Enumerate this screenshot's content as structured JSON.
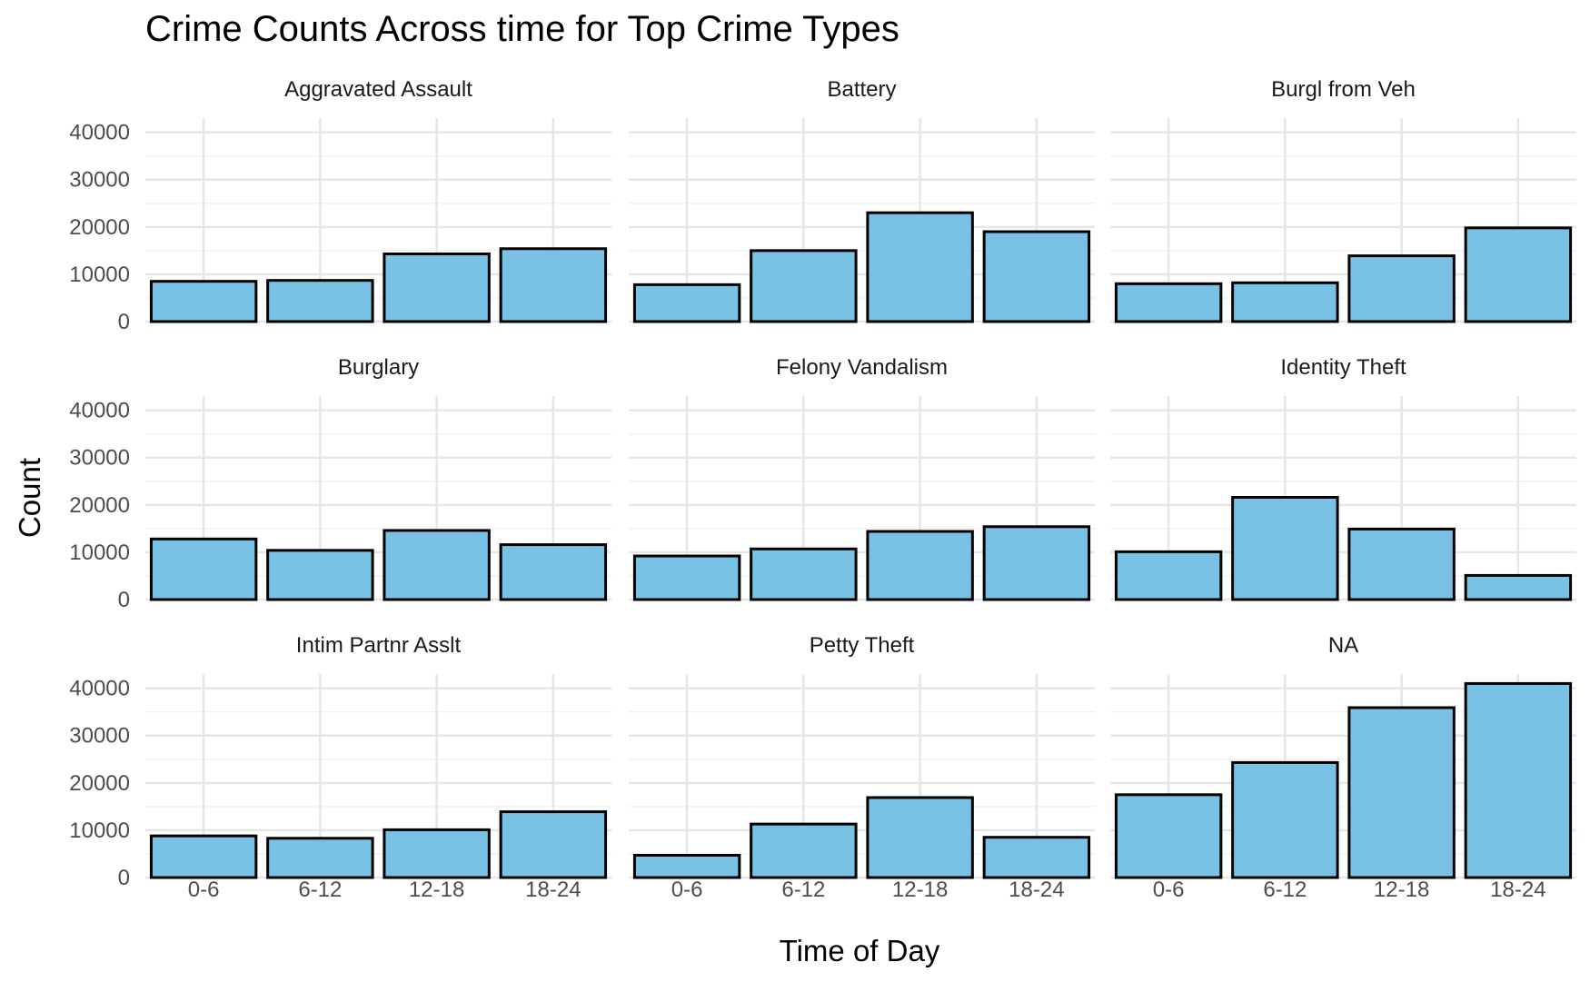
{
  "chart_data": {
    "type": "bar",
    "title": "Crime Counts Across time for Top Crime Types",
    "xlabel": "Time of Day",
    "ylabel": "Count",
    "categories": [
      "0-6",
      "6-12",
      "12-18",
      "18-24"
    ],
    "ylim": [
      0,
      43000
    ],
    "yticks": [
      0,
      10000,
      20000,
      30000,
      40000
    ],
    "grid": true,
    "layout": "facet grid, 3 rows x 3 columns",
    "bar_fill": "#79c2e5",
    "bar_outline": "#000000",
    "series": [
      {
        "name": "Aggravated Assault",
        "values": [
          8500,
          8700,
          14300,
          15400
        ]
      },
      {
        "name": "Battery",
        "values": [
          7800,
          15000,
          23000,
          19000
        ]
      },
      {
        "name": "Burgl from Veh",
        "values": [
          8000,
          8200,
          13900,
          19800
        ]
      },
      {
        "name": "Burglary",
        "values": [
          12800,
          10400,
          14600,
          11600
        ]
      },
      {
        "name": "Felony Vandalism",
        "values": [
          9200,
          10700,
          14400,
          15400
        ]
      },
      {
        "name": "Identity Theft",
        "values": [
          10100,
          21600,
          14900,
          5100
        ]
      },
      {
        "name": "Intim Partnr Asslt",
        "values": [
          8800,
          8300,
          10100,
          13900
        ]
      },
      {
        "name": "Petty Theft",
        "values": [
          4700,
          11300,
          16900,
          8500
        ]
      },
      {
        "name": "NA",
        "values": [
          17500,
          24300,
          35900,
          41000
        ]
      }
    ]
  }
}
